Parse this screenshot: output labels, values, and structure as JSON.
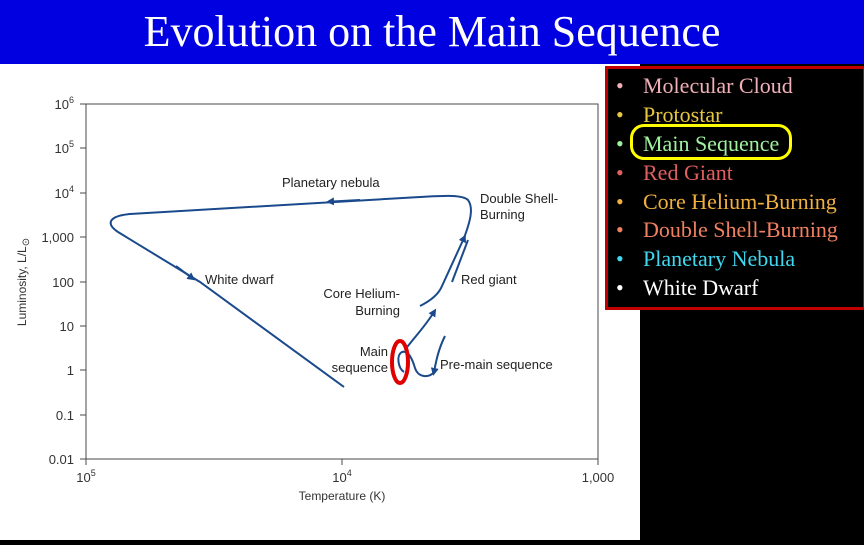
{
  "slide": {
    "title": "Evolution on the Main Sequence"
  },
  "diagram": {
    "y_axis_label": "Luminosity, L/L",
    "y_axis_label_symbol": "⊙",
    "x_axis_label": "Temperature (K)",
    "y_ticks": [
      {
        "base": "10",
        "exp": "6"
      },
      {
        "base": "10",
        "exp": "5"
      },
      {
        "base": "10",
        "exp": "4"
      },
      {
        "base": "1,000",
        "exp": ""
      },
      {
        "base": "100",
        "exp": ""
      },
      {
        "base": "10",
        "exp": ""
      },
      {
        "base": "1",
        "exp": ""
      },
      {
        "base": "0.1",
        "exp": ""
      },
      {
        "base": "0.01",
        "exp": ""
      }
    ],
    "x_ticks": [
      {
        "base": "10",
        "exp": "5"
      },
      {
        "base": "10",
        "exp": "4"
      },
      {
        "base": "1,000",
        "exp": ""
      }
    ],
    "labels": {
      "planetary_nebula": "Planetary nebula",
      "double_shell_1": "Double Shell-",
      "double_shell_2": "Burning",
      "white_dwarf": "White dwarf",
      "core_helium_1": "Core Helium-",
      "core_helium_2": "Burning",
      "red_giant": "Red giant",
      "main_sequence_1": "Main",
      "main_sequence_2": "sequence",
      "pre_main_sequence": "Pre-main sequence"
    },
    "colors": {
      "track": "#1a4a8c",
      "marker": "#e00000",
      "axis": "#4a4a4a"
    }
  },
  "legend": {
    "bullet": "•",
    "items": [
      {
        "label": "Molecular Cloud",
        "color": "#f0b0b8"
      },
      {
        "label": "Protostar",
        "color": "#e8c840"
      },
      {
        "label": "Main Sequence",
        "color": "#a0f0a0"
      },
      {
        "label": "Red Giant",
        "color": "#e06060"
      },
      {
        "label": "Core Helium-Burning",
        "color": "#f0b040"
      },
      {
        "label": "Double Shell-Burning",
        "color": "#f08060"
      },
      {
        "label": "Planetary Nebula",
        "color": "#40d8f0"
      },
      {
        "label": "White Dwarf",
        "color": "#ffffff"
      }
    ],
    "highlight_color": "#ffff00",
    "border_color": "#c00000"
  }
}
